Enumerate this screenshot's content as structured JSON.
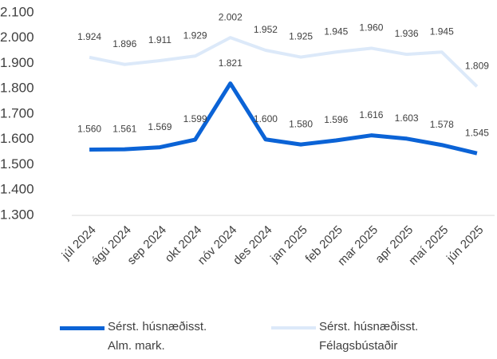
{
  "chart_data": {
    "type": "line",
    "categories": [
      "júl 2024",
      "ágú 2024",
      "sep 2024",
      "okt 2024",
      "nóv 2024",
      "des 2024",
      "jan 2025",
      "feb 2025",
      "mar 2025",
      "apr 2025",
      "maí 2025",
      "jún 2025"
    ],
    "series": [
      {
        "name": "Sérst. húsnæðisst. Alm. mark.",
        "color": "#0b63d6",
        "values": [
          1560,
          1561,
          1569,
          1599,
          1821,
          1600,
          1580,
          1596,
          1616,
          1603,
          1578,
          1545
        ],
        "value_labels": [
          "1.560",
          "1.561",
          "1.569",
          "1.599",
          "1.821",
          "1.600",
          "1.580",
          "1.596",
          "1.616",
          "1.603",
          "1.578",
          "1.545"
        ]
      },
      {
        "name": "Sérst. húsnæðisst. Félagsbústaðir",
        "color": "#dce9f9",
        "values": [
          1924,
          1896,
          1911,
          1929,
          2002,
          1952,
          1925,
          1945,
          1960,
          1936,
          1945,
          1809
        ],
        "value_labels": [
          "1.924",
          "1.896",
          "1.911",
          "1.929",
          "2.002",
          "1.952",
          "1.925",
          "1.945",
          "1.960",
          "1.936",
          "1.945",
          "1.809"
        ]
      }
    ],
    "ylim": [
      1300,
      2100
    ],
    "yticks": [
      {
        "value": 1300,
        "label": "1.300"
      },
      {
        "value": 1400,
        "label": "1.400"
      },
      {
        "value": 1500,
        "label": "1.500"
      },
      {
        "value": 1600,
        "label": "1.600"
      },
      {
        "value": 1700,
        "label": "1.700"
      },
      {
        "value": 1800,
        "label": "1.800"
      },
      {
        "value": 1900,
        "label": "1.900"
      },
      {
        "value": 2000,
        "label": "2.000"
      },
      {
        "value": 2100,
        "label": "2.100"
      }
    ],
    "grid": false,
    "legend": "bottom"
  }
}
